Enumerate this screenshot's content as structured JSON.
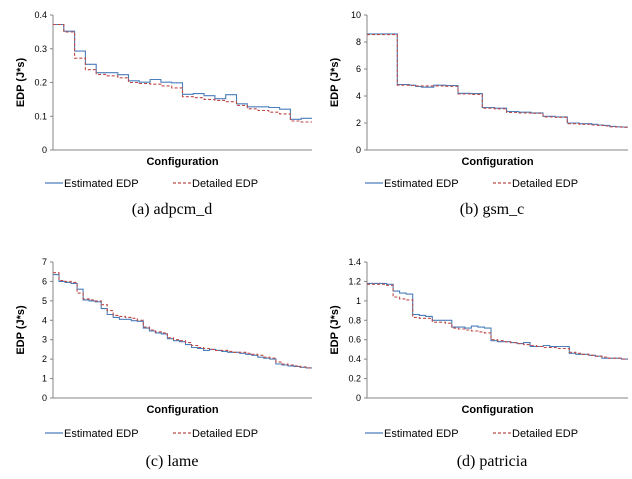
{
  "chart_data": [
    {
      "type": "line",
      "caption": "(a) adpcm_d",
      "xlabel": "Configuration",
      "ylabel": "EDP (J*s)",
      "ylim": [
        0,
        0.4
      ],
      "yticks": [
        "0",
        "0.1",
        "0.2",
        "0.3",
        "0.4"
      ],
      "grid": false,
      "legend_position": "bottom",
      "series": [
        {
          "name": "Estimated EDP",
          "color": "#4a7ebb",
          "dash": "solid",
          "values": [
            0.372,
            0.372,
            0.352,
            0.352,
            0.293,
            0.293,
            0.254,
            0.254,
            0.229,
            0.229,
            0.229,
            0.229,
            0.223,
            0.223,
            0.205,
            0.205,
            0.201,
            0.201,
            0.209,
            0.209,
            0.201,
            0.201,
            0.199,
            0.199,
            0.165,
            0.165,
            0.167,
            0.167,
            0.161,
            0.161,
            0.152,
            0.152,
            0.164,
            0.164,
            0.137,
            0.137,
            0.128,
            0.128,
            0.128,
            0.128,
            0.126,
            0.126,
            0.121,
            0.121,
            0.091,
            0.091,
            0.094,
            0.094
          ]
        },
        {
          "name": "Detailed EDP",
          "color": "#be4b48",
          "dash": "dashed",
          "values": [
            0.372,
            0.372,
            0.35,
            0.35,
            0.272,
            0.272,
            0.238,
            0.238,
            0.224,
            0.224,
            0.22,
            0.22,
            0.214,
            0.214,
            0.2,
            0.2,
            0.197,
            0.197,
            0.195,
            0.195,
            0.19,
            0.19,
            0.184,
            0.184,
            0.158,
            0.158,
            0.155,
            0.155,
            0.15,
            0.15,
            0.147,
            0.147,
            0.143,
            0.143,
            0.132,
            0.132,
            0.122,
            0.122,
            0.117,
            0.117,
            0.112,
            0.112,
            0.107,
            0.107,
            0.086,
            0.086,
            0.083,
            0.083
          ]
        }
      ]
    },
    {
      "type": "line",
      "caption": "(b) gsm_c",
      "xlabel": "Configuration",
      "ylabel": "EDP (J*s)",
      "ylim": [
        0,
        10
      ],
      "yticks": [
        "0",
        "2",
        "4",
        "6",
        "8",
        "10"
      ],
      "grid": false,
      "legend_position": "bottom",
      "series": [
        {
          "name": "Estimated EDP",
          "color": "#4a7ebb",
          "dash": "solid",
          "values": [
            8.6,
            8.6,
            8.6,
            8.6,
            8.6,
            4.85,
            4.85,
            4.8,
            4.7,
            4.65,
            4.65,
            4.8,
            4.8,
            4.78,
            4.78,
            4.2,
            4.2,
            4.18,
            4.18,
            3.15,
            3.15,
            3.1,
            3.1,
            2.85,
            2.85,
            2.8,
            2.8,
            2.75,
            2.75,
            2.5,
            2.5,
            2.45,
            2.45,
            2.0,
            2.0,
            1.95,
            1.95,
            1.9,
            1.85,
            1.82,
            1.75,
            1.72,
            1.7
          ]
        },
        {
          "name": "Detailed EDP",
          "color": "#be4b48",
          "dash": "dashed",
          "values": [
            8.55,
            8.55,
            8.55,
            8.55,
            8.55,
            4.8,
            4.8,
            4.78,
            4.75,
            4.75,
            4.75,
            4.75,
            4.75,
            4.72,
            4.72,
            4.15,
            4.15,
            4.12,
            4.12,
            3.1,
            3.1,
            3.05,
            3.05,
            2.78,
            2.78,
            2.75,
            2.75,
            2.72,
            2.72,
            2.45,
            2.45,
            2.42,
            2.42,
            1.95,
            1.95,
            1.9,
            1.9,
            1.85,
            1.82,
            1.78,
            1.72,
            1.7,
            1.68
          ]
        }
      ]
    },
    {
      "type": "line",
      "caption": "(c) lame",
      "xlabel": "Configuration",
      "ylabel": "EDP (J*s)",
      "ylim": [
        0,
        7
      ],
      "yticks": [
        "0",
        "1",
        "2",
        "3",
        "4",
        "5",
        "6",
        "7"
      ],
      "grid": false,
      "legend_position": "bottom",
      "series": [
        {
          "name": "Estimated EDP",
          "color": "#4a7ebb",
          "dash": "solid",
          "values": [
            6.35,
            6.0,
            5.95,
            5.9,
            5.6,
            5.05,
            5.0,
            4.95,
            4.6,
            4.3,
            4.15,
            4.05,
            4.05,
            3.98,
            3.95,
            3.6,
            3.45,
            3.35,
            3.3,
            3.05,
            2.95,
            2.9,
            2.75,
            2.6,
            2.55,
            2.45,
            2.5,
            2.45,
            2.4,
            2.35,
            2.35,
            2.3,
            2.25,
            2.2,
            2.1,
            2.05,
            2.0,
            1.75,
            1.7,
            1.65,
            1.62,
            1.58,
            1.55
          ]
        },
        {
          "name": "Detailed EDP",
          "color": "#be4b48",
          "dash": "dashed",
          "values": [
            6.45,
            6.05,
            6.0,
            5.95,
            5.4,
            5.1,
            5.05,
            5.0,
            4.8,
            4.5,
            4.25,
            4.2,
            4.15,
            4.1,
            4.0,
            3.65,
            3.5,
            3.4,
            3.35,
            3.1,
            3.0,
            2.95,
            2.85,
            2.7,
            2.6,
            2.55,
            2.5,
            2.45,
            2.45,
            2.4,
            2.35,
            2.35,
            2.3,
            2.25,
            2.2,
            2.1,
            2.05,
            1.85,
            1.75,
            1.7,
            1.65,
            1.6,
            1.55
          ]
        }
      ]
    },
    {
      "type": "line",
      "caption": "(d) patricia",
      "xlabel": "Configuration",
      "ylabel": "EDP (J*s)",
      "ylim": [
        0,
        1.4
      ],
      "yticks": [
        "0",
        "0.2",
        "0.4",
        "0.6",
        "0.8",
        "1",
        "1.2",
        "1.4"
      ],
      "grid": false,
      "legend_position": "bottom",
      "series": [
        {
          "name": "Estimated EDP",
          "color": "#4a7ebb",
          "dash": "solid",
          "values": [
            1.18,
            1.18,
            1.18,
            1.17,
            1.1,
            1.08,
            1.07,
            0.86,
            0.85,
            0.84,
            0.8,
            0.8,
            0.8,
            0.73,
            0.73,
            0.72,
            0.74,
            0.73,
            0.72,
            0.59,
            0.58,
            0.58,
            0.57,
            0.56,
            0.57,
            0.53,
            0.53,
            0.54,
            0.53,
            0.53,
            0.53,
            0.46,
            0.45,
            0.45,
            0.44,
            0.43,
            0.41,
            0.41,
            0.41,
            0.4
          ]
        },
        {
          "name": "Detailed EDP",
          "color": "#be4b48",
          "dash": "dashed",
          "values": [
            1.17,
            1.17,
            1.17,
            1.16,
            1.04,
            1.02,
            1.01,
            0.83,
            0.82,
            0.82,
            0.78,
            0.78,
            0.77,
            0.72,
            0.71,
            0.7,
            0.69,
            0.68,
            0.67,
            0.6,
            0.59,
            0.58,
            0.57,
            0.56,
            0.55,
            0.54,
            0.53,
            0.52,
            0.52,
            0.51,
            0.51,
            0.47,
            0.46,
            0.45,
            0.44,
            0.43,
            0.42,
            0.41,
            0.41,
            0.4
          ]
        }
      ]
    }
  ]
}
